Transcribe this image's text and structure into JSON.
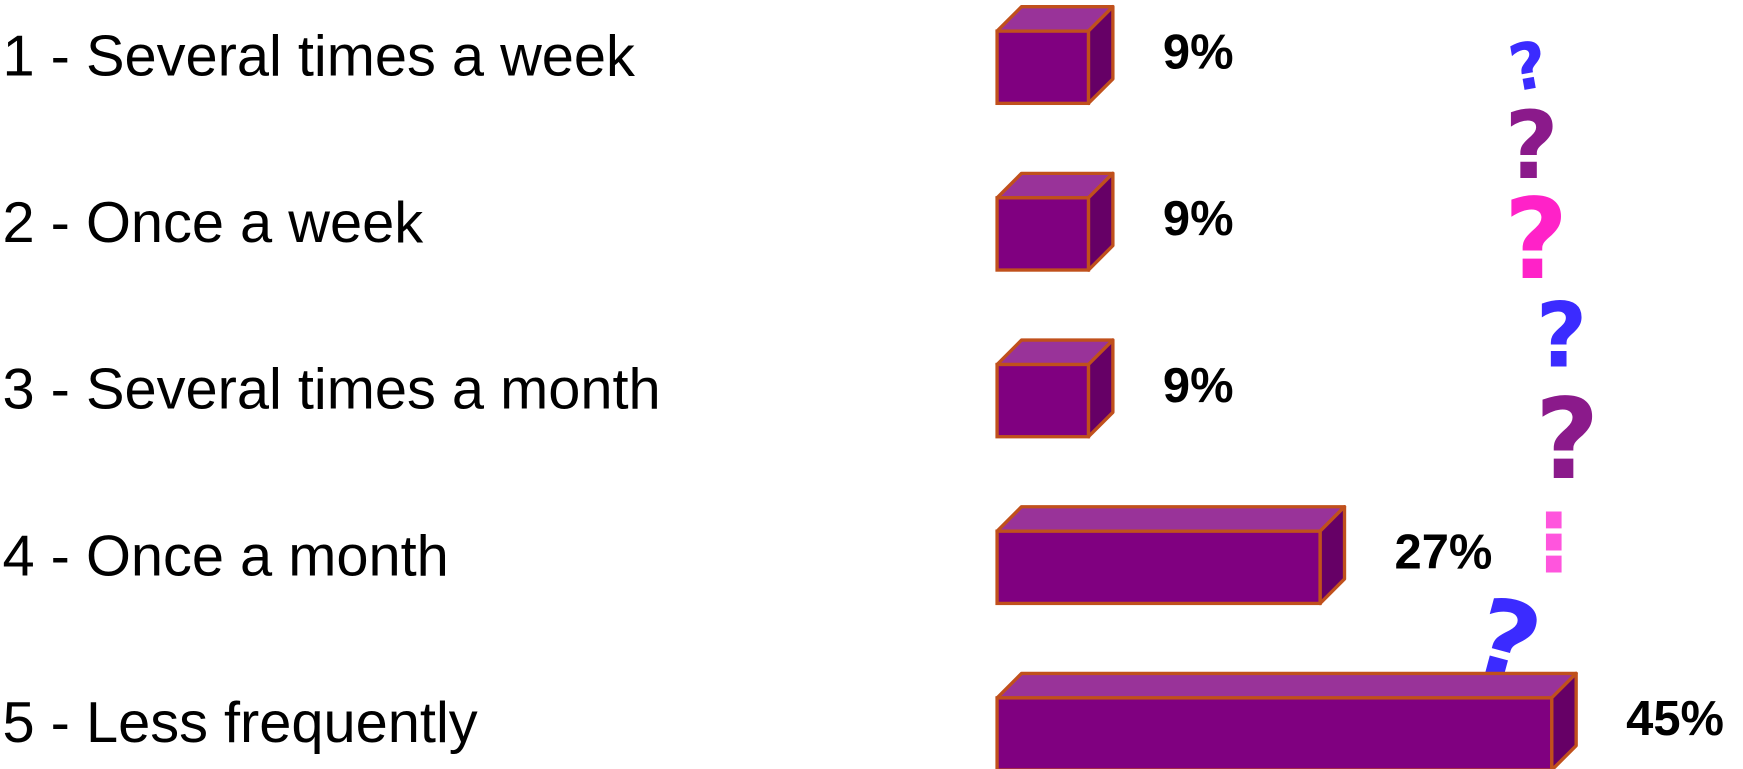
{
  "chart_data": {
    "type": "bar3d",
    "categories": [
      "1 - Several times a week",
      "2 - Once a week",
      "3 - Several times a month",
      "4 - Once a month",
      "5 - Less frequently"
    ],
    "values": [
      9,
      9,
      9,
      27,
      45
    ],
    "value_labels": [
      "9%",
      "9%",
      "9%",
      "27%",
      "45%"
    ],
    "color": "#800080"
  }
}
